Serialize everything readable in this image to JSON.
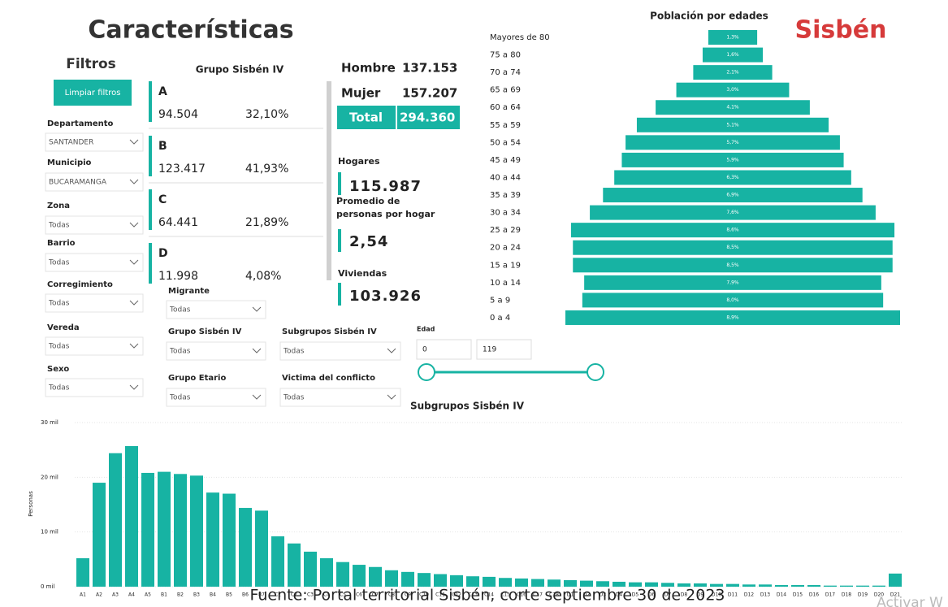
{
  "header": {
    "title": "Características"
  },
  "filters": {
    "title": "Filtros",
    "clear": "Limpiar filtros",
    "items": [
      {
        "label": "Departamento",
        "value": "SANTANDER"
      },
      {
        "label": "Municipio",
        "value": "BUCARAMANGA"
      },
      {
        "label": "Zona",
        "value": "Todas"
      },
      {
        "label": "Barrio",
        "value": "Todas"
      },
      {
        "label": "Corregimiento",
        "value": "Todas"
      },
      {
        "label": "Vereda",
        "value": "Todas"
      },
      {
        "label": "Sexo",
        "value": "Todas"
      }
    ]
  },
  "extra_filters": [
    {
      "label": "Migrante",
      "value": "Todas"
    },
    {
      "label": "Grupo Sisbén IV",
      "value": "Todas"
    },
    {
      "label": "Subgrupos Sisbén IV",
      "value": "Todas"
    },
    {
      "label": "Grupo Etario",
      "value": "Todas"
    },
    {
      "label": "Victima del conflicto",
      "value": "Todas"
    }
  ],
  "age_filter": {
    "label": "Edad",
    "min": "0",
    "max": "119"
  },
  "groups": {
    "title": "Grupo Sisbén IV",
    "items": [
      {
        "name": "A",
        "count": "94.504",
        "share": "32,10%"
      },
      {
        "name": "B",
        "count": "123.417",
        "share": "41,93%"
      },
      {
        "name": "C",
        "count": "64.441",
        "share": "21,89%"
      },
      {
        "name": "D",
        "count": "11.998",
        "share": "4,08%"
      }
    ]
  },
  "sex": [
    {
      "label": "Hombre",
      "value": "137.153"
    },
    {
      "label": "Mujer",
      "value": "157.207"
    },
    {
      "label": "Total",
      "value": "294.360"
    }
  ],
  "stats": [
    {
      "label": "Hogares",
      "value": "115.987"
    },
    {
      "label": "Promedio de personas por hogar",
      "value": "2,54"
    },
    {
      "label": "Viviendas",
      "value": "103.926"
    }
  ],
  "logo": "Sisbén",
  "source": "Fuente: Portal territorial Sisbén, corte septiembre 30 de 2023",
  "watermark": "Activar W",
  "charts": [
    {
      "type": "bar",
      "orientation": "horizontal",
      "title": "Población por edades",
      "color": "#17b3a3",
      "categories": [
        "Mayores de 80",
        "75 a 80",
        "70 a 74",
        "65 a 69",
        "60 a 64",
        "55 a 59",
        "50 a 54",
        "45 a 49",
        "40 a 44",
        "35 a 39",
        "30 a 34",
        "25 a 29",
        "20 a 24",
        "15 a 19",
        "10 a 14",
        "5 a 9",
        "0 a 4"
      ],
      "values": [
        1.3,
        1.6,
        2.1,
        3.0,
        4.1,
        5.1,
        5.7,
        5.9,
        6.3,
        6.9,
        7.6,
        8.6,
        8.5,
        8.5,
        7.9,
        8.0,
        8.9
      ],
      "value_labels": [
        "1,3%",
        "1,6%",
        "2,1%",
        "3,0%",
        "4,1%",
        "5,1%",
        "5,7%",
        "5,9%",
        "6,3%",
        "6,9%",
        "7,6%",
        "8,6%",
        "8,5%",
        "8,5%",
        "7,9%",
        "8,0%",
        "8,9%"
      ]
    },
    {
      "type": "bar",
      "title": "Subgrupos Sisbén IV",
      "y_label": "Personas",
      "color": "#17b3a3",
      "grid": true,
      "ylim": [
        0,
        30000
      ],
      "yticks": [
        {
          "value": 0,
          "label": "0 mil"
        },
        {
          "value": 10000,
          "label": "10 mil"
        },
        {
          "value": 20000,
          "label": "20 mil"
        },
        {
          "value": 30000,
          "label": "30 mil"
        }
      ],
      "categories": [
        "A1",
        "A2",
        "A3",
        "A4",
        "A5",
        "B1",
        "B2",
        "B3",
        "B4",
        "B5",
        "B6",
        "B7",
        "C1",
        "C2",
        "C3",
        "C4",
        "C5",
        "C6",
        "C7",
        "C8",
        "C9",
        "C10",
        "C11",
        "C12",
        "C13",
        "C14",
        "C15",
        "C16",
        "C17",
        "C18",
        "D1",
        "D2",
        "D3",
        "D4",
        "D5",
        "D6",
        "D7",
        "D8",
        "D9",
        "D10",
        "D11",
        "D12",
        "D13",
        "D14",
        "D15",
        "D16",
        "D17",
        "D18",
        "D19",
        "D20",
        "D21"
      ],
      "values": [
        5200,
        19000,
        24400,
        25700,
        20800,
        21000,
        20600,
        20300,
        17200,
        17000,
        14400,
        13900,
        9200,
        7900,
        6400,
        5200,
        4500,
        4000,
        3600,
        3000,
        2700,
        2500,
        2300,
        2100,
        1900,
        1800,
        1600,
        1500,
        1400,
        1300,
        1200,
        1100,
        1000,
        900,
        800,
        800,
        700,
        600,
        600,
        500,
        500,
        400,
        400,
        300,
        300,
        300,
        200,
        200,
        200,
        200,
        2400
      ]
    }
  ]
}
